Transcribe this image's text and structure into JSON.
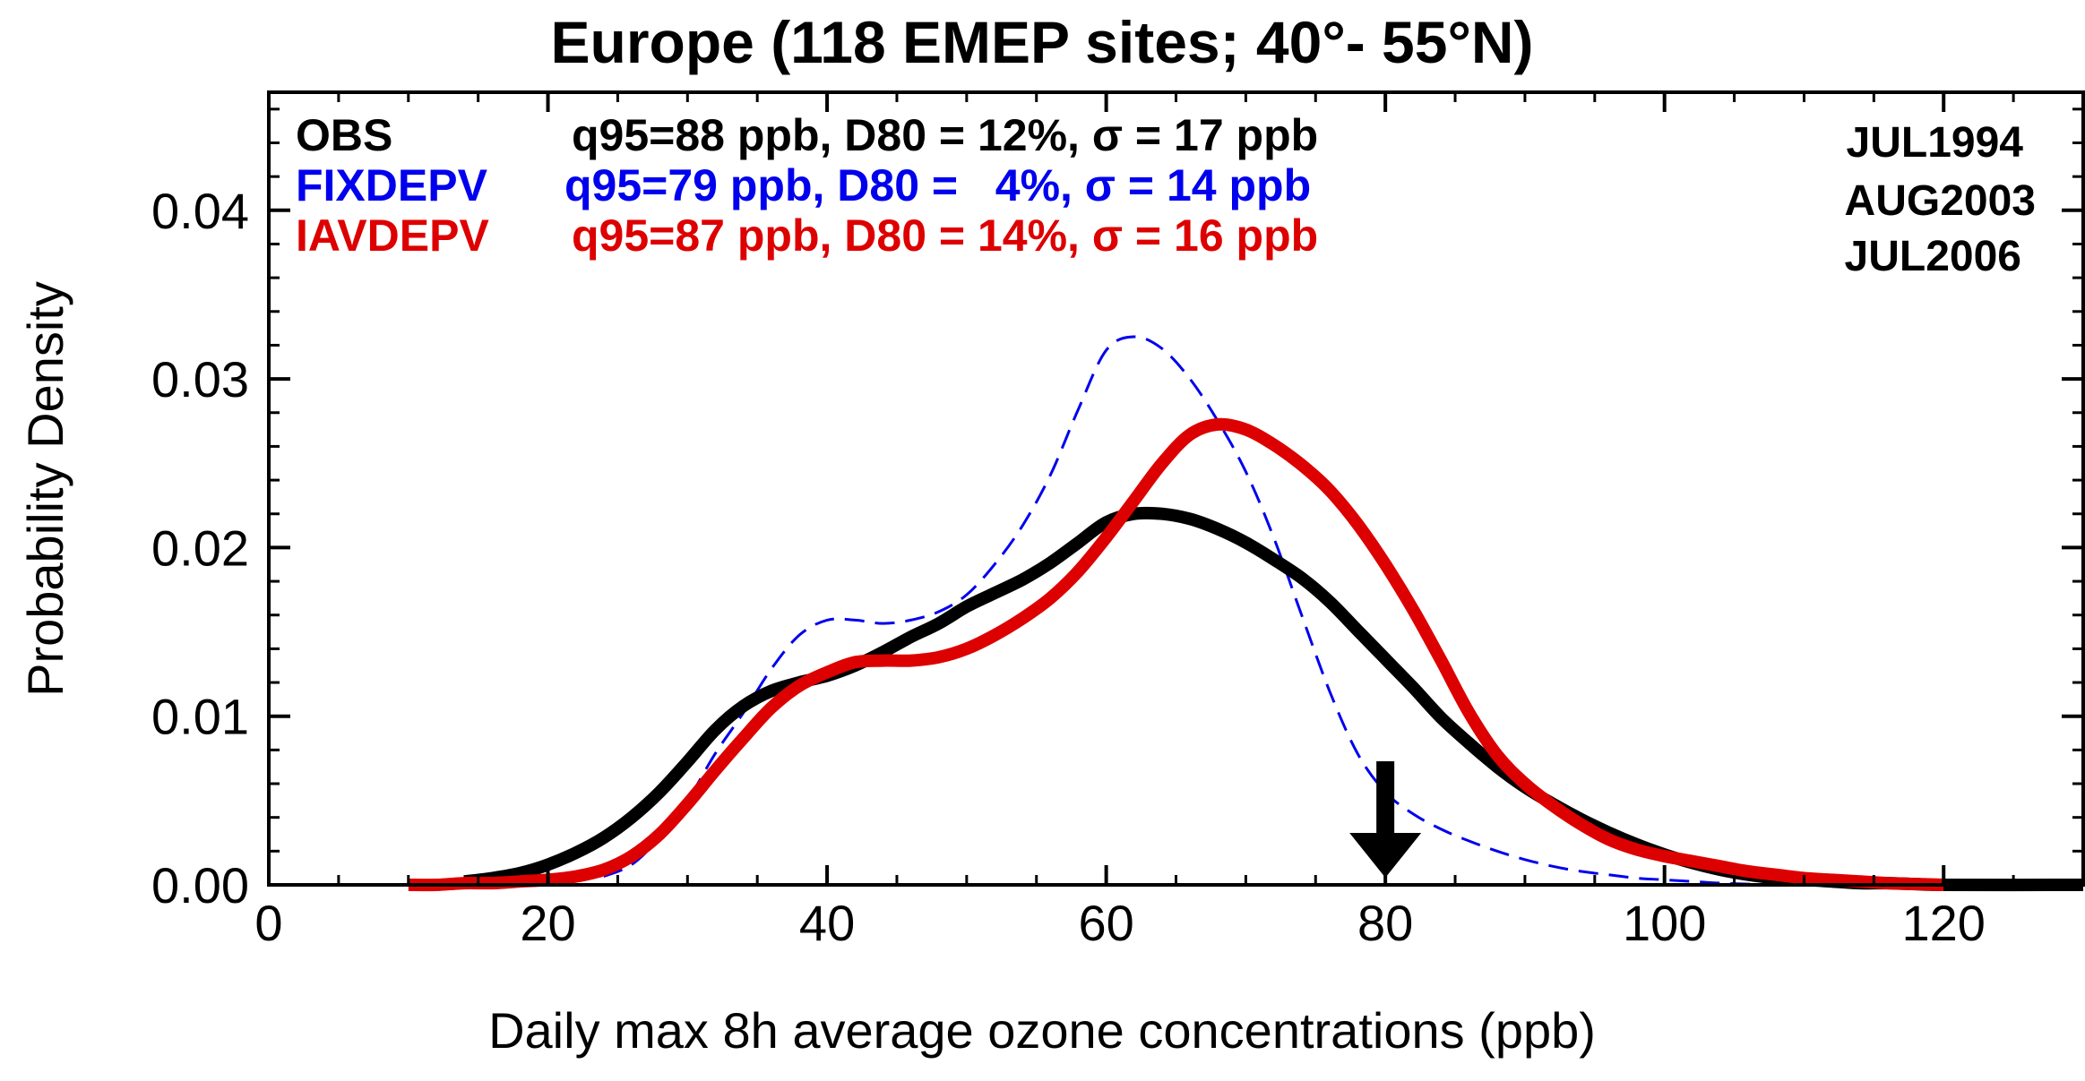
{
  "chart_data": {
    "type": "line",
    "title": "Europe (118 EMEP sites; 40°- 55°N)",
    "xlabel": "Daily max 8h average ozone concentrations (ppb)",
    "ylabel": "Probability Density",
    "xlim": [
      0,
      130
    ],
    "ylim": [
      0,
      0.047
    ],
    "xticks": [
      0,
      20,
      40,
      60,
      80,
      100,
      120
    ],
    "xtick_labels": [
      "0",
      "20",
      "40",
      "60",
      "80",
      "100",
      "120"
    ],
    "yticks": [
      0,
      0.01,
      0.02,
      0.03,
      0.04
    ],
    "ytick_labels": [
      "0.00",
      "0.01",
      "0.02",
      "0.03",
      "0.04"
    ],
    "grid": false,
    "series": [
      {
        "name": "OBS",
        "stats": "q95=88 ppb, D80 = 12%, σ = 17 ppb",
        "color": "#000000",
        "style": "solid-thick",
        "x": [
          14,
          16,
          18,
          20,
          22,
          24,
          26,
          28,
          30,
          32,
          34,
          36,
          38,
          40,
          42,
          44,
          46,
          48,
          50,
          52,
          54,
          56,
          58,
          60,
          62,
          64,
          66,
          68,
          70,
          72,
          74,
          76,
          78,
          80,
          82,
          84,
          86,
          88,
          90,
          92,
          94,
          96,
          98,
          100,
          102,
          104,
          106,
          108,
          110,
          112,
          114,
          116,
          118,
          120,
          130
        ],
        "y": [
          0.0002,
          0.0004,
          0.0007,
          0.0012,
          0.0019,
          0.0028,
          0.004,
          0.0055,
          0.0073,
          0.0092,
          0.0106,
          0.0115,
          0.012,
          0.0124,
          0.013,
          0.0138,
          0.0147,
          0.0155,
          0.0165,
          0.0173,
          0.0181,
          0.0191,
          0.0203,
          0.0215,
          0.022,
          0.022,
          0.0217,
          0.0211,
          0.0203,
          0.0193,
          0.0182,
          0.0168,
          0.0151,
          0.0134,
          0.0117,
          0.0099,
          0.0084,
          0.007,
          0.0058,
          0.0048,
          0.0039,
          0.0031,
          0.0024,
          0.0018,
          0.0013,
          0.0009,
          0.0006,
          0.0004,
          0.0003,
          0.0002,
          0.0001,
          0.0001,
          5e-05,
          0.0,
          0.0
        ]
      },
      {
        "name": "FIXDEPV",
        "stats": "q95=79 ppb, D80 =   4%, σ = 14 ppb",
        "color": "#0000ee",
        "style": "dashed-thin",
        "x": [
          24,
          26,
          28,
          30,
          32,
          34,
          36,
          38,
          40,
          42,
          44,
          46,
          48,
          50,
          52,
          54,
          56,
          58,
          60,
          62,
          64,
          66,
          68,
          70,
          72,
          74,
          76,
          78,
          80,
          82,
          84,
          86,
          88,
          90,
          92,
          94,
          96,
          98,
          100,
          102,
          104,
          106,
          108
        ],
        "y": [
          0.0005,
          0.0012,
          0.0028,
          0.005,
          0.0078,
          0.0102,
          0.0128,
          0.0148,
          0.0157,
          0.0157,
          0.0155,
          0.0157,
          0.0162,
          0.0172,
          0.019,
          0.0213,
          0.0243,
          0.0282,
          0.0317,
          0.0325,
          0.0318,
          0.03,
          0.0275,
          0.0245,
          0.0206,
          0.016,
          0.0115,
          0.0078,
          0.0055,
          0.0042,
          0.0033,
          0.0026,
          0.002,
          0.0015,
          0.0011,
          0.0008,
          0.0006,
          0.0004,
          0.0003,
          0.0002,
          0.0001,
          5e-05,
          0.0
        ]
      },
      {
        "name": "IAVDEPV",
        "stats": "q95=87 ppb, D80 = 14%, σ = 16 ppb",
        "color": "#dd0000",
        "style": "solid-thick",
        "x": [
          10,
          12,
          14,
          16,
          18,
          20,
          22,
          24,
          26,
          28,
          30,
          32,
          34,
          36,
          38,
          40,
          42,
          44,
          46,
          48,
          50,
          52,
          54,
          56,
          58,
          60,
          62,
          64,
          66,
          68,
          70,
          72,
          74,
          76,
          78,
          80,
          82,
          84,
          86,
          88,
          90,
          92,
          94,
          96,
          98,
          100,
          102,
          104,
          106,
          108,
          110,
          112,
          114,
          116,
          118,
          120
        ],
        "y": [
          0.0,
          0.0,
          0.0001,
          0.0001,
          0.0002,
          0.0003,
          0.0005,
          0.0009,
          0.0017,
          0.003,
          0.0048,
          0.0068,
          0.0087,
          0.0105,
          0.0118,
          0.0126,
          0.0132,
          0.0133,
          0.0133,
          0.0135,
          0.014,
          0.0148,
          0.0158,
          0.017,
          0.0186,
          0.0206,
          0.0228,
          0.025,
          0.0267,
          0.0273,
          0.027,
          0.0261,
          0.0249,
          0.0234,
          0.0214,
          0.019,
          0.0163,
          0.0133,
          0.0102,
          0.0077,
          0.006,
          0.0047,
          0.0036,
          0.0027,
          0.0021,
          0.0017,
          0.0014,
          0.0011,
          0.0008,
          0.0006,
          0.0004,
          0.0003,
          0.0002,
          0.0001,
          5e-05,
          0.0
        ]
      }
    ],
    "annotations": {
      "periods": [
        "JUL1994",
        "AUG2003",
        "JUL2006"
      ],
      "arrow_x": 80,
      "arrow_color": "#000000"
    }
  }
}
